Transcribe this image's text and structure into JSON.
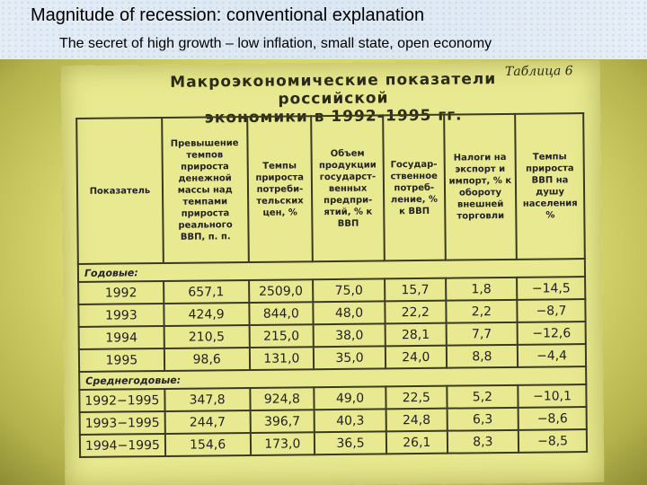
{
  "slide": {
    "title": "Magnitude of recession: conventional explanation",
    "subtitle": "The secret of high growth – low inflation, small state, open economy"
  },
  "table": {
    "number_label": "Таблица 6",
    "title_line1": "Макроэкономические показатели российской",
    "title_line2": "экономики в 1992–1995 гг.",
    "headers": [
      "Показатель",
      "Превышение темпов прироста денежной массы над темпами прироста реального ВВП, п. п.",
      "Темпы прироста потреби-тельских цен, %",
      "Объем продукции государст-венных предпри-ятий, % к ВВП",
      "Государ-ственное потреб-ление, % к ВВП",
      "Налоги на экспорт и импорт, % к обороту внешней торговли",
      "Темпы прироста ВВП на душу населения %"
    ],
    "sections": [
      {
        "label": "Годовые:",
        "rows": [
          [
            "1992",
            "657,1",
            "2509,0",
            "75,0",
            "15,7",
            "1,8",
            "−14,5"
          ],
          [
            "1993",
            "424,9",
            "844,0",
            "48,0",
            "22,2",
            "2,2",
            "−8,7"
          ],
          [
            "1994",
            "210,5",
            "215,0",
            "38,0",
            "28,1",
            "7,7",
            "−12,6"
          ],
          [
            "1995",
            "98,6",
            "131,0",
            "35,0",
            "24,0",
            "8,8",
            "−4,4"
          ]
        ]
      },
      {
        "label": "Среднегодовые:",
        "rows": [
          [
            "1992−1995",
            "347,8",
            "924,8",
            "49,0",
            "22,5",
            "5,2",
            "−10,1"
          ],
          [
            "1993−1995",
            "244,7",
            "396,7",
            "40,3",
            "24,8",
            "6,3",
            "−8,6"
          ],
          [
            "1994−1995",
            "154,6",
            "173,0",
            "36,5",
            "26,1",
            "8,3",
            "−8,5"
          ]
        ]
      }
    ]
  }
}
